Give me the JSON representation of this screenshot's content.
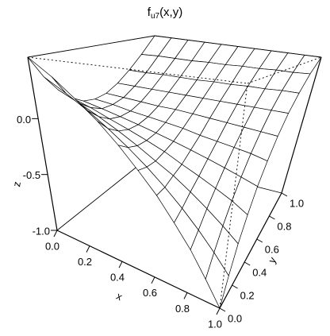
{
  "chart_data": {
    "type": "surface",
    "title": [
      "f",
      "u7",
      "(x,y)"
    ],
    "x_label": "x",
    "y_label": "y",
    "z_label": "z",
    "xlim": [
      0,
      1
    ],
    "ylim": [
      0,
      1
    ],
    "zlim": [
      -1,
      0.55
    ],
    "xticks": [
      {
        "value": 0,
        "label": "0.0"
      },
      {
        "value": 0.2,
        "label": "0.2"
      },
      {
        "value": 0.4,
        "label": "0.4"
      },
      {
        "value": 0.6,
        "label": "0.6"
      },
      {
        "value": 0.8,
        "label": "0.8"
      },
      {
        "value": 1,
        "label": "1.0"
      }
    ],
    "yticks": [
      {
        "value": 0,
        "label": "0.0"
      },
      {
        "value": 0.2,
        "label": "0.2"
      },
      {
        "value": 0.4,
        "label": "0.4"
      },
      {
        "value": 0.6,
        "label": "0.6"
      },
      {
        "value": 0.8,
        "label": "0.8"
      },
      {
        "value": 1,
        "label": "1.0"
      }
    ],
    "zticks": [
      {
        "value": -1,
        "label": "-1.0"
      },
      {
        "value": -0.5,
        "label": "-0.5"
      },
      {
        "value": 0,
        "label": "0.0"
      }
    ],
    "x": [
      0,
      0.1,
      0.2,
      0.3,
      0.4,
      0.5,
      0.6,
      0.7,
      0.8,
      0.9,
      1
    ],
    "y": [
      0,
      0.1,
      0.2,
      0.3,
      0.4,
      0.5,
      0.6,
      0.7,
      0.8,
      0.9,
      1
    ],
    "z": [
      [
        0.55,
        0.35,
        0.2,
        0.09,
        0.02,
        0,
        0.02,
        0.09,
        0.2,
        0.35,
        0.55
      ],
      [
        0.4,
        0.23,
        0.11,
        0.03,
        -0.02,
        -0.02,
        0.01,
        0.09,
        0.2,
        0.36,
        0.55
      ],
      [
        0.24,
        0.11,
        0.02,
        -0.04,
        -0.06,
        -0.05,
        0,
        0.09,
        0.21,
        0.36,
        0.55
      ],
      [
        0.09,
        -0.01,
        -0.07,
        -0.1,
        -0.1,
        -0.07,
        -0.01,
        0.09,
        0.21,
        0.36,
        0.55
      ],
      [
        -0.07,
        -0.13,
        -0.16,
        -0.16,
        -0.14,
        -0.09,
        -0.01,
        0.09,
        0.21,
        0.37,
        0.55
      ],
      [
        -0.23,
        -0.25,
        -0.25,
        -0.22,
        -0.18,
        -0.11,
        -0.02,
        0.09,
        0.22,
        0.37,
        0.55
      ],
      [
        -0.38,
        -0.37,
        -0.33,
        -0.29,
        -0.22,
        -0.14,
        -0.03,
        0.09,
        0.22,
        0.38,
        0.55
      ],
      [
        -0.54,
        -0.49,
        -0.42,
        -0.35,
        -0.26,
        -0.16,
        -0.04,
        0.09,
        0.23,
        0.38,
        0.55
      ],
      [
        -0.69,
        -0.61,
        -0.51,
        -0.41,
        -0.3,
        -0.18,
        -0.05,
        0.09,
        0.23,
        0.39,
        0.55
      ],
      [
        -0.85,
        -0.73,
        -0.6,
        -0.47,
        -0.34,
        -0.2,
        -0.06,
        0.09,
        0.24,
        0.39,
        0.55
      ],
      [
        -1,
        -0.85,
        -0.69,
        -0.54,
        -0.38,
        -0.23,
        -0.07,
        0.09,
        0.24,
        0.4,
        0.55
      ]
    ],
    "color": "#ffffff",
    "edge_color": "#000000"
  }
}
